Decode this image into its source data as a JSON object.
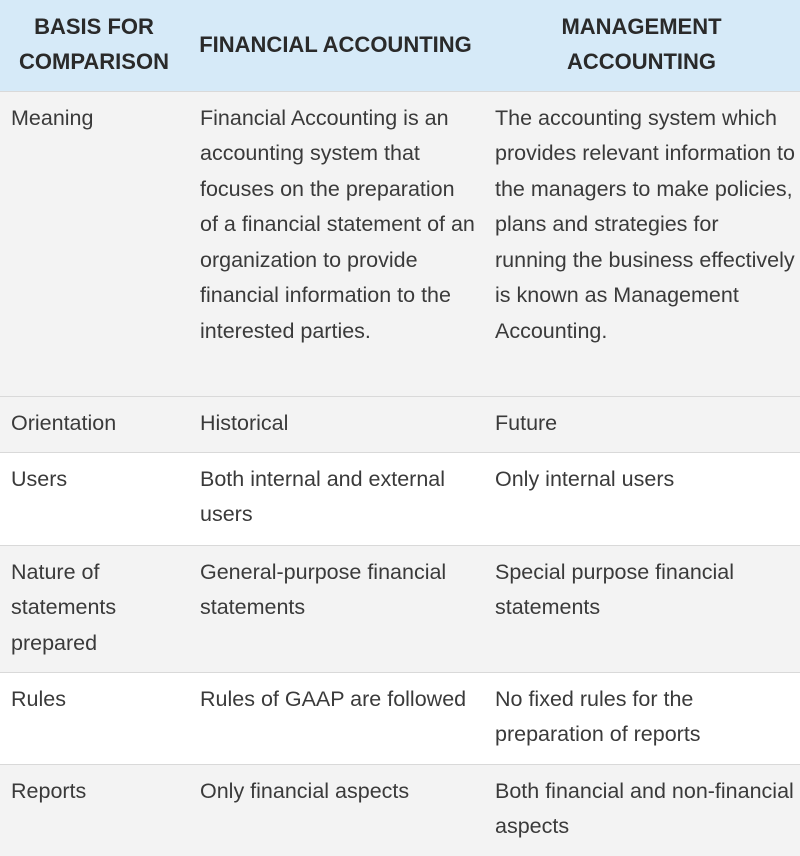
{
  "header": {
    "col1": "BASIS FOR COMPARISON",
    "col2": "FINANCIAL ACCOUNTING",
    "col3": "MANAGEMENT ACCOUNTING"
  },
  "rows": [
    {
      "basis": "Meaning",
      "financial": "Financial Accounting is an accounting system that focuses on the preparation of a financial statement of an organization to provide financial information to the interested parties.",
      "management": "The accounting system which provides relevant information to the managers to make policies, plans and strategies for running the business effectively is known as Management Accounting."
    },
    {
      "basis": "Orientation",
      "financial": "Historical",
      "management": "Future"
    },
    {
      "basis": "Users",
      "financial": "Both internal and external users",
      "management": "Only internal users"
    },
    {
      "basis": "Nature of statements prepared",
      "financial": "General-purpose financial statements",
      "management": "Special purpose financial statements"
    },
    {
      "basis": "Rules",
      "financial": "Rules of GAAP are followed",
      "management": "No fixed rules for the preparation of reports"
    },
    {
      "basis": "Reports",
      "financial": "Only financial aspects",
      "management": "Both financial and non-financial aspects"
    }
  ]
}
